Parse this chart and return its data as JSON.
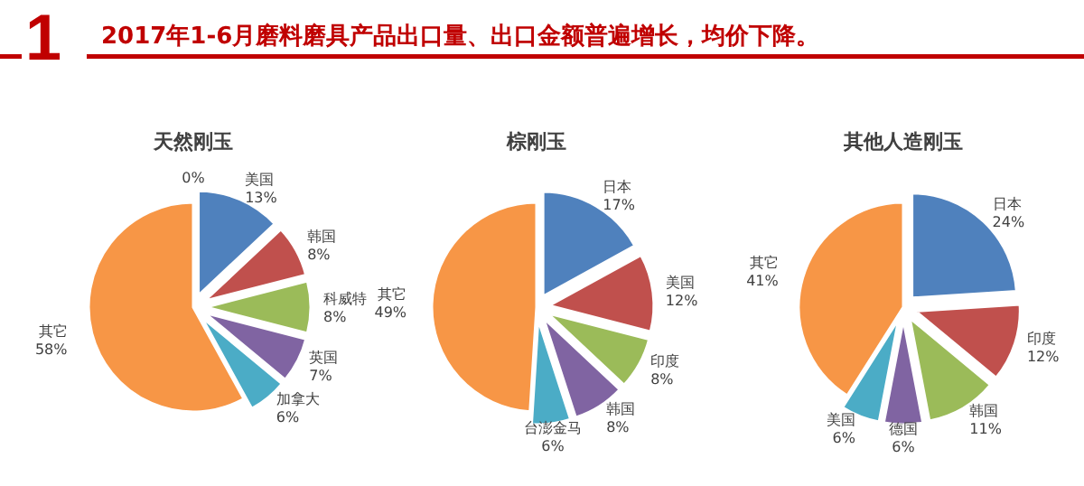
{
  "chart_data": [
    {
      "type": "pie",
      "title": "天然刚玉",
      "annotations": [
        "1",
        "2017年1-6月磨料磨具产品出口量、出口金额普遍增长，均价下降。"
      ],
      "categories": [
        null,
        "美国",
        "韩国",
        "科威特",
        "英国",
        "加拿大",
        "其它"
      ],
      "values": [
        0,
        13,
        8,
        8,
        7,
        6,
        58
      ],
      "value_labels": [
        "0%",
        "13%",
        "8%",
        "8%",
        "7%",
        "6%",
        "58%"
      ],
      "colors": [
        "#4f81bd",
        "#4f81bd",
        "#c0504d",
        "#9bbb59",
        "#8064a2",
        "#4bacc6",
        "#f79646"
      ]
    },
    {
      "type": "pie",
      "title": "棕刚玉",
      "categories": [
        "日本",
        "美国",
        "印度",
        "韩国",
        "台澎金马",
        "其它"
      ],
      "values": [
        17,
        12,
        8,
        8,
        6,
        49
      ],
      "value_labels": [
        "17%",
        "12%",
        "8%",
        "8%",
        "6%",
        "49%"
      ],
      "colors": [
        "#4f81bd",
        "#c0504d",
        "#9bbb59",
        "#8064a2",
        "#4bacc6",
        "#f79646"
      ]
    },
    {
      "type": "pie",
      "title": "其他人造刚玉",
      "categories": [
        "日本",
        "印度",
        "韩国",
        "德国",
        "美国",
        "其它"
      ],
      "values": [
        24,
        12,
        11,
        6,
        6,
        41
      ],
      "value_labels": [
        "24%",
        "12%",
        "11%",
        "6%",
        "6%",
        "41%"
      ],
      "colors": [
        "#4f81bd",
        "#c0504d",
        "#9bbb59",
        "#8064a2",
        "#4bacc6",
        "#f79646"
      ]
    }
  ]
}
